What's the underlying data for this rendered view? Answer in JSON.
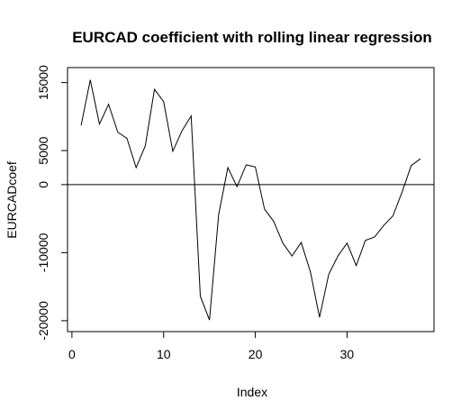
{
  "chart_data": {
    "type": "line",
    "title": "EURCAD coefficient with rolling linear regression",
    "xlabel": "Index",
    "ylabel": "EURCADcoef",
    "x": [
      1,
      2,
      3,
      4,
      5,
      6,
      7,
      8,
      9,
      10,
      11,
      12,
      13,
      14,
      15,
      16,
      17,
      18,
      19,
      20,
      21,
      22,
      23,
      24,
      25,
      26,
      27,
      28,
      29,
      30,
      31,
      32,
      33,
      34,
      35,
      36,
      37,
      38
    ],
    "series": [
      {
        "name": "EURCADcoef",
        "color": "#000000",
        "values": [
          8700,
          15400,
          8900,
          11800,
          7700,
          6800,
          2500,
          5700,
          14000,
          12200,
          4900,
          7900,
          10100,
          -16400,
          -19900,
          -4400,
          2500,
          -300,
          2900,
          2600,
          -3600,
          -5400,
          -8600,
          -10500,
          -8500,
          -12800,
          -19500,
          -13200,
          -10500,
          -8600,
          -11900,
          -8200,
          -7700,
          -6000,
          -4600,
          -1100,
          2800,
          3800
        ]
      }
    ],
    "reference_line": 0,
    "xlim": [
      -0.48,
      39.48
    ],
    "xticks": [
      0,
      10,
      20,
      30
    ],
    "ylim": [
      -21600,
      17200
    ],
    "yticks": [
      -20000,
      -10000,
      0,
      5000,
      15000
    ]
  }
}
